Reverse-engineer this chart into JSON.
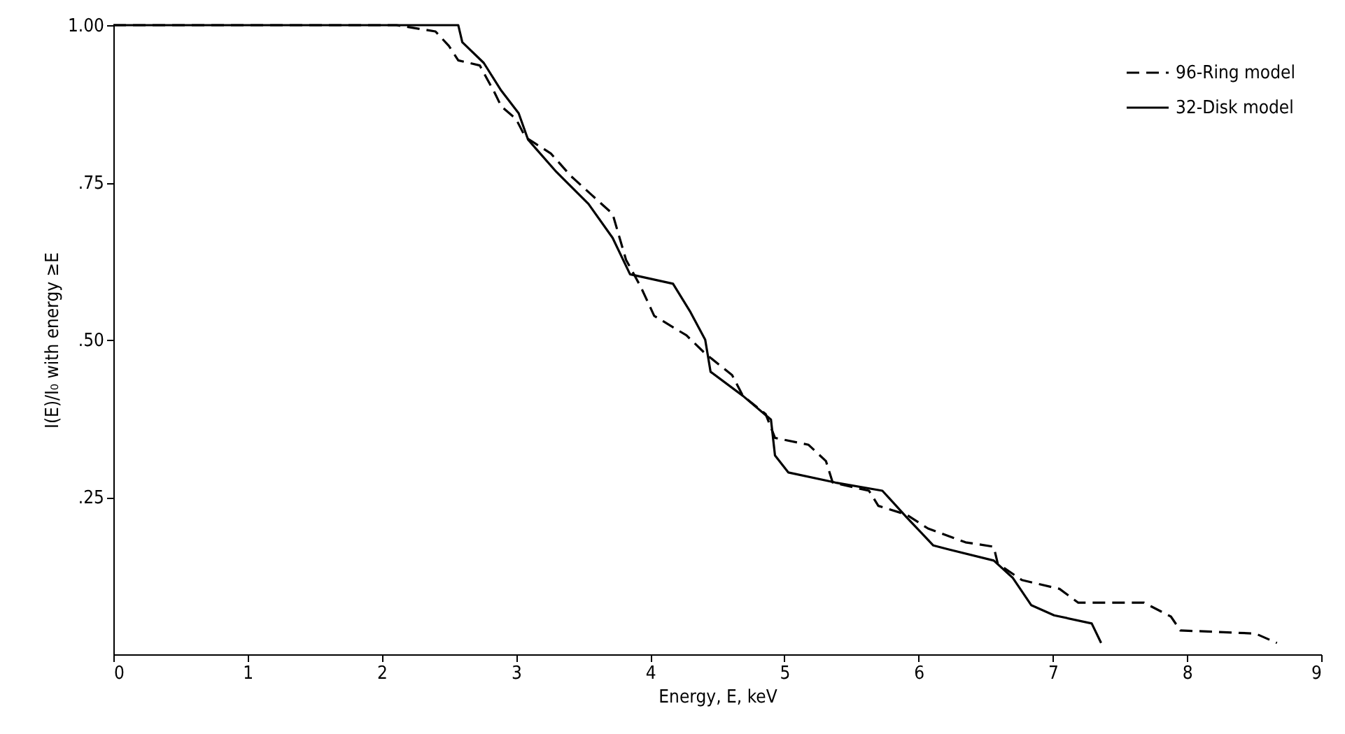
{
  "chart_data": {
    "type": "line",
    "xlabel": "Energy, E, keV",
    "ylabel": "I(E)/I₀ with energy ≥E",
    "xlim": [
      0,
      9
    ],
    "xticks": [
      0,
      1,
      2,
      3,
      4,
      5,
      6,
      7,
      8,
      9
    ],
    "ylim": [
      0,
      1
    ],
    "yticks": [
      {
        "value": 0.25,
        "label": ".25"
      },
      {
        "value": 0.5,
        "label": ".50"
      },
      {
        "value": 0.75,
        "label": ".75"
      },
      {
        "value": 1,
        "label": "1.00"
      }
    ],
    "grid": false,
    "legend": "top right",
    "marker": "none",
    "series": [
      {
        "name": "96-Ring model",
        "color": "#000000",
        "line_style": "dashed",
        "x": [
          0,
          2.11,
          2.4,
          2.5,
          2.57,
          2.73,
          2.84,
          2.89,
          3.0,
          3.07,
          3.26,
          3.41,
          3.57,
          3.72,
          3.82,
          3.93,
          4.03,
          4.27,
          4.41,
          4.61,
          4.69,
          4.86,
          4.93,
          5.18,
          5.31,
          5.36,
          5.63,
          5.7,
          5.91,
          6.07,
          6.35,
          6.56,
          6.59,
          6.77,
          7.05,
          7.19,
          7.68,
          7.88,
          7.95,
          8.51,
          8.67
        ],
        "values": [
          1,
          1,
          0.99,
          0.967,
          0.944,
          0.936,
          0.893,
          0.871,
          0.851,
          0.822,
          0.796,
          0.76,
          0.729,
          0.7,
          0.627,
          0.584,
          0.538,
          0.507,
          0.478,
          0.444,
          0.411,
          0.382,
          0.344,
          0.333,
          0.307,
          0.273,
          0.26,
          0.236,
          0.222,
          0.2,
          0.178,
          0.171,
          0.144,
          0.118,
          0.104,
          0.082,
          0.082,
          0.06,
          0.038,
          0.033,
          0.018
        ]
      },
      {
        "name": "32-Disk model",
        "color": "#000000",
        "line_style": "solid",
        "x": [
          0,
          2.57,
          2.6,
          2.76,
          2.89,
          3.02,
          3.09,
          3.3,
          3.54,
          3.72,
          3.85,
          4.17,
          4.3,
          4.41,
          4.45,
          4.69,
          4.9,
          4.93,
          5.03,
          5.38,
          5.73,
          5.91,
          6.11,
          6.22,
          6.56,
          6.7,
          6.84,
          7.01,
          7.29,
          7.36
        ],
        "values": [
          1,
          1,
          0.973,
          0.94,
          0.896,
          0.86,
          0.818,
          0.767,
          0.716,
          0.662,
          0.604,
          0.589,
          0.544,
          0.5,
          0.449,
          0.411,
          0.373,
          0.316,
          0.289,
          0.273,
          0.26,
          0.218,
          0.173,
          0.167,
          0.149,
          0.122,
          0.078,
          0.062,
          0.049,
          0.018
        ]
      }
    ]
  }
}
